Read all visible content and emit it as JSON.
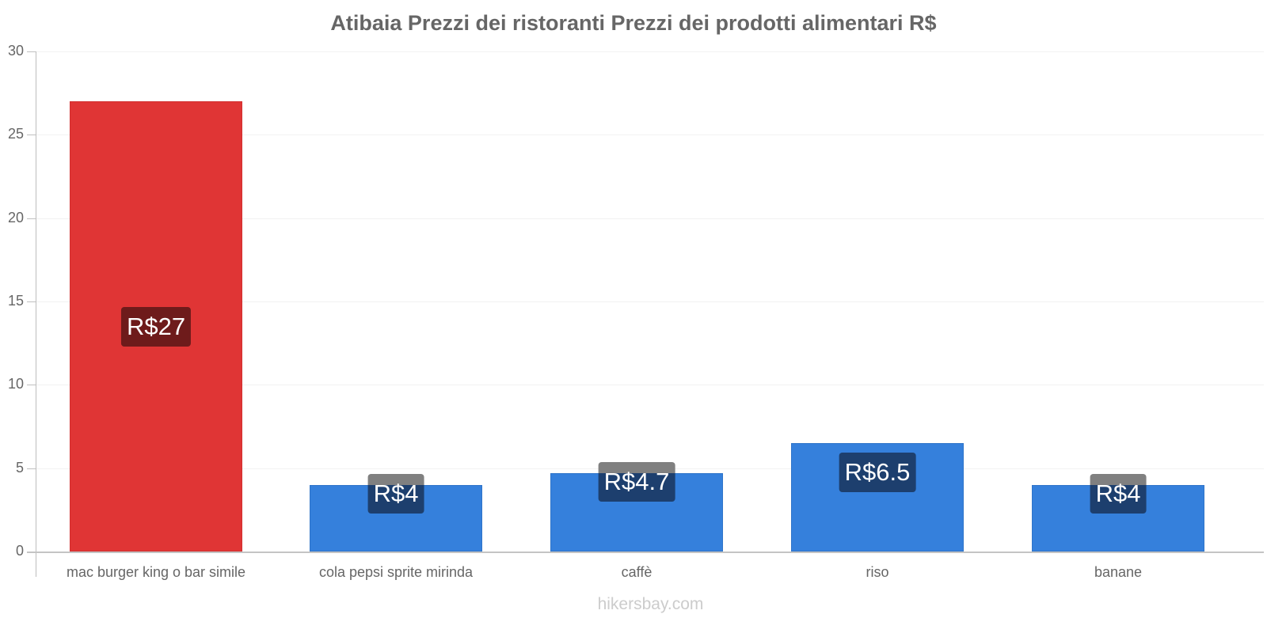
{
  "header": {
    "title": "Atibaia Prezzi dei ristoranti Prezzi dei prodotti alimentari R$"
  },
  "footer": {
    "watermark": "hikersbay.com"
  },
  "colors": {
    "highlight_bar": "#e03535",
    "default_bar": "#3580dc",
    "highlight_label_bg": "#6e1b1b",
    "default_label_bg": "#1d3f6e",
    "label_overflow_bg": "#808080",
    "text": "#666666"
  },
  "axis": {
    "y_ticks": [
      "0",
      "5",
      "10",
      "15",
      "20",
      "25",
      "30"
    ]
  },
  "bars": [
    {
      "category": "mac burger king o bar simile",
      "value": 27,
      "label": "R$27",
      "highlight": true
    },
    {
      "category": "cola pepsi sprite mirinda",
      "value": 4,
      "label": "R$4",
      "highlight": false
    },
    {
      "category": "caffè",
      "value": 4.7,
      "label": "R$4.7",
      "highlight": false
    },
    {
      "category": "riso",
      "value": 6.5,
      "label": "R$6.5",
      "highlight": false
    },
    {
      "category": "banane",
      "value": 4,
      "label": "R$4",
      "highlight": false
    }
  ],
  "chart_data": {
    "type": "bar",
    "title": "Atibaia Prezzi dei ristoranti Prezzi dei prodotti alimentari R$",
    "categories": [
      "mac burger king o bar simile",
      "cola pepsi sprite mirinda",
      "caffè",
      "riso",
      "banane"
    ],
    "values": [
      27,
      4,
      4.7,
      6.5,
      4
    ],
    "data_labels": [
      "R$27",
      "R$4",
      "R$4.7",
      "R$6.5",
      "R$4"
    ],
    "xlabel": "",
    "ylabel": "",
    "ylim": [
      0,
      30
    ],
    "y_ticks": [
      0,
      5,
      10,
      15,
      20,
      25,
      30
    ],
    "grid": true,
    "legend": "none",
    "colors": [
      "#e03535",
      "#3580dc",
      "#3580dc",
      "#3580dc",
      "#3580dc"
    ]
  }
}
